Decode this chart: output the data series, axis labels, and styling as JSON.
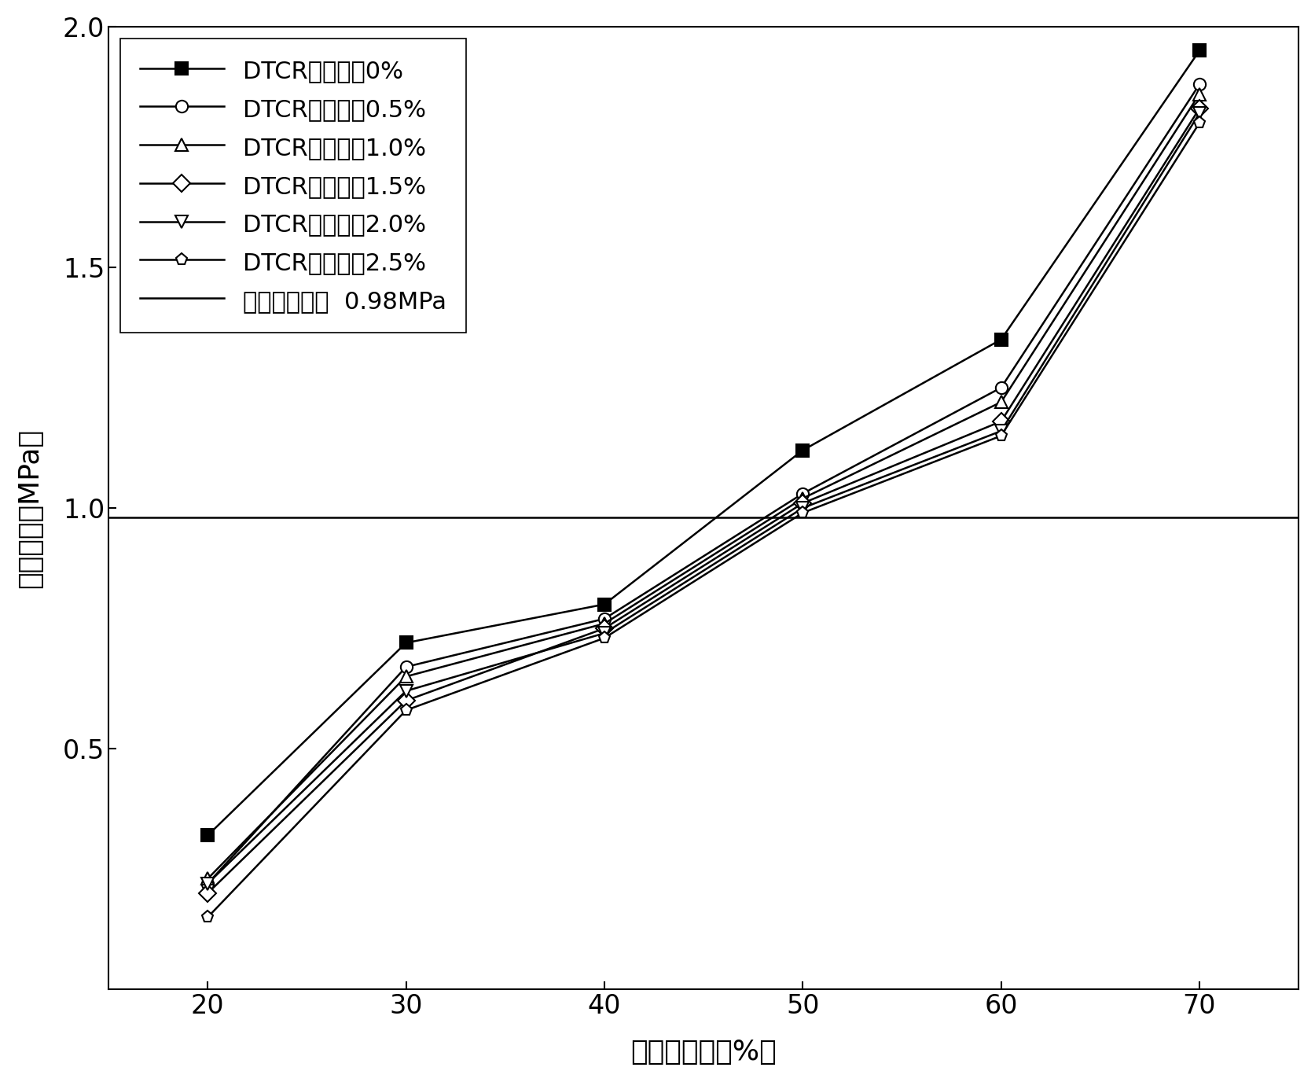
{
  "x": [
    20,
    30,
    40,
    50,
    60,
    70
  ],
  "series": [
    {
      "label": "DTCR掺入量丸0%",
      "values": [
        0.32,
        0.72,
        0.8,
        1.12,
        1.35,
        1.95
      ],
      "marker": "s",
      "marker_fill": "black",
      "linestyle": "-"
    },
    {
      "label": "DTCR掺入量丸0.5%",
      "values": [
        0.22,
        0.67,
        0.77,
        1.03,
        1.25,
        1.88
      ],
      "marker": "o",
      "marker_fill": "white",
      "linestyle": "-"
    },
    {
      "label": "DTCR掺入量丸1.0%",
      "values": [
        0.23,
        0.65,
        0.76,
        1.02,
        1.22,
        1.86
      ],
      "marker": "^",
      "marker_fill": "white",
      "linestyle": "-"
    },
    {
      "label": "DTCR掺入量丸1.5%",
      "values": [
        0.2,
        0.6,
        0.75,
        1.01,
        1.18,
        1.83
      ],
      "marker": "D",
      "marker_fill": "white",
      "linestyle": "-"
    },
    {
      "label": "DTCR掺入量丸2.0%",
      "values": [
        0.22,
        0.62,
        0.74,
        1.0,
        1.16,
        1.82
      ],
      "marker": "v",
      "marker_fill": "white",
      "linestyle": "-"
    },
    {
      "label": "DTCR掺入量丸2.5%",
      "values": [
        0.15,
        0.58,
        0.73,
        0.99,
        1.15,
        1.8
      ],
      "marker": "o",
      "marker_fill": "white",
      "linestyle": "-"
    }
  ],
  "hline_value": 0.98,
  "hline_label": "抗压强度指标  0.98MPa",
  "xlabel": "水泥掺入量（%）",
  "ylabel": "抗压强度（MPa）",
  "xlim": [
    15,
    75
  ],
  "ylim": [
    0.0,
    2.0
  ],
  "yticks": [
    0.5,
    1.0,
    1.5,
    2.0
  ],
  "xticks": [
    20,
    30,
    40,
    50,
    60,
    70
  ],
  "linewidth": 1.8,
  "markersize": 11,
  "legend_fontsize": 22,
  "axis_fontsize": 26,
  "tick_fontsize": 24,
  "background_color": "#ffffff"
}
